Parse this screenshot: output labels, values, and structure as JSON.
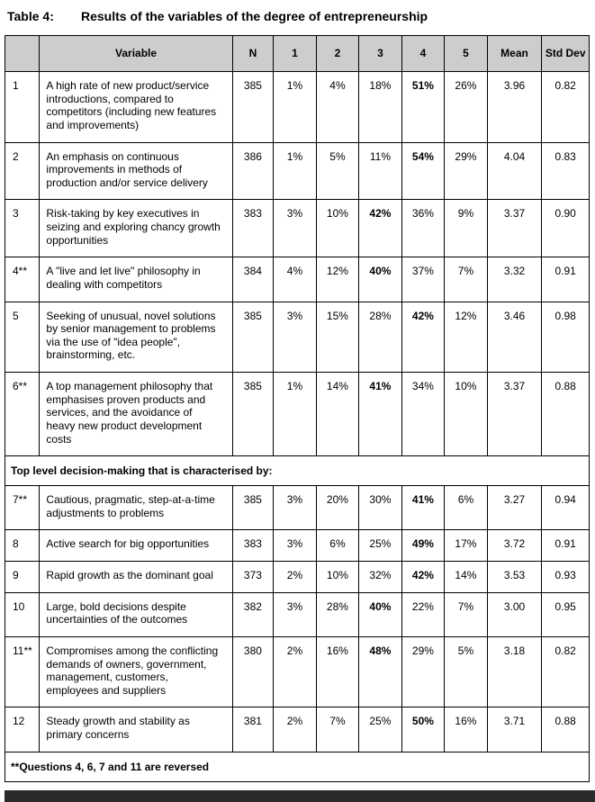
{
  "title": {
    "label": "Table 4:",
    "text": "Results of the variables of the degree of entrepreneurship"
  },
  "table": {
    "headers": [
      "",
      "Variable",
      "N",
      "1",
      "2",
      "3",
      "4",
      "5",
      "Mean",
      "Std Dev"
    ],
    "rows": [
      {
        "type": "item",
        "id": "1",
        "variable": "A high rate of new product/service introductions, compared to competitors (including new features and improvements)",
        "n": "385",
        "p": [
          "1%",
          "4%",
          "18%",
          "51%",
          "26%"
        ],
        "bold": 3,
        "mean": "3.96",
        "std": "0.82"
      },
      {
        "type": "item",
        "id": "2",
        "variable": "An emphasis on continuous improvements in methods of production and/or service delivery",
        "n": "386",
        "p": [
          "1%",
          "5%",
          "11%",
          "54%",
          "29%"
        ],
        "bold": 3,
        "mean": "4.04",
        "std": "0.83"
      },
      {
        "type": "item",
        "id": "3",
        "variable": "Risk-taking by key executives in seizing and exploring chancy growth opportunities",
        "n": "383",
        "p": [
          "3%",
          "10%",
          "42%",
          "36%",
          "9%"
        ],
        "bold": 2,
        "mean": "3.37",
        "std": "0.90"
      },
      {
        "type": "item",
        "id": "4**",
        "variable": "A \"live and let live\" philosophy in dealing with competitors",
        "n": "384",
        "p": [
          "4%",
          "12%",
          "40%",
          "37%",
          "7%"
        ],
        "bold": 2,
        "mean": "3.32",
        "std": "0.91"
      },
      {
        "type": "item",
        "id": "5",
        "variable": "Seeking of unusual, novel solutions by senior management to problems via the use of \"idea people\", brainstorming, etc.",
        "n": "385",
        "p": [
          "3%",
          "15%",
          "28%",
          "42%",
          "12%"
        ],
        "bold": 3,
        "mean": "3.46",
        "std": "0.98"
      },
      {
        "type": "item",
        "id": "6**",
        "variable": "A top management philosophy that emphasises proven products and services, and the avoidance of heavy new product development costs",
        "n": "385",
        "p": [
          "1%",
          "14%",
          "41%",
          "34%",
          "10%"
        ],
        "bold": 2,
        "mean": "3.37",
        "std": "0.88"
      },
      {
        "type": "section",
        "label": "Top level decision-making that is characterised by:"
      },
      {
        "type": "item",
        "id": "7**",
        "variable": "Cautious, pragmatic, step-at-a-time adjustments to problems",
        "n": "385",
        "p": [
          "3%",
          "20%",
          "30%",
          "41%",
          "6%"
        ],
        "bold": 3,
        "mean": "3.27",
        "std": "0.94"
      },
      {
        "type": "item",
        "id": "8",
        "variable": "Active search for big opportunities",
        "n": "383",
        "p": [
          "3%",
          "6%",
          "25%",
          "49%",
          "17%"
        ],
        "bold": 3,
        "mean": "3.72",
        "std": "0.91"
      },
      {
        "type": "item",
        "id": "9",
        "variable": "Rapid growth as the dominant goal",
        "n": "373",
        "p": [
          "2%",
          "10%",
          "32%",
          "42%",
          "14%"
        ],
        "bold": 3,
        "mean": "3.53",
        "std": "0.93"
      },
      {
        "type": "item",
        "id": "10",
        "variable": "Large, bold decisions despite uncertainties of the outcomes",
        "n": "382",
        "p": [
          "3%",
          "28%",
          "40%",
          "22%",
          "7%"
        ],
        "bold": 2,
        "mean": "3.00",
        "std": "0.95"
      },
      {
        "type": "item",
        "id": "11**",
        "variable": "Compromises among the conflicting demands of owners, government, management, customers, employees and suppliers",
        "n": "380",
        "p": [
          "2%",
          "16%",
          "48%",
          "29%",
          "5%"
        ],
        "bold": 2,
        "mean": "3.18",
        "std": "0.82"
      },
      {
        "type": "item",
        "id": "12",
        "variable": "Steady growth and stability as primary concerns",
        "n": "381",
        "p": [
          "2%",
          "7%",
          "25%",
          "50%",
          "16%"
        ],
        "bold": 3,
        "mean": "3.71",
        "std": "0.88"
      }
    ],
    "footnote": "**Questions 4, 6, 7 and 11 are reversed"
  }
}
